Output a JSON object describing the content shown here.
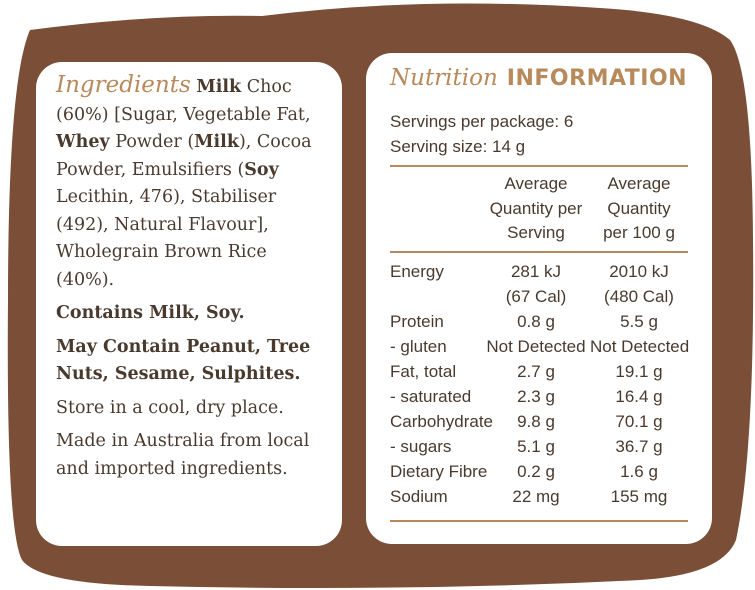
{
  "colors": {
    "brown": "#7a4e37",
    "gold": "#b8895a",
    "text": "#4a3a2e",
    "panel": "#ffffff"
  },
  "ingredients": {
    "title": "Ingredients",
    "lead_bold": "Milk",
    "lead_text": " Choc (60%) [Sugar, Vegetable Fat, ",
    "whey_bold": "Whey",
    "whey_text": " Powder (",
    "milk_bold": "Milk",
    "after_milk": "), Cocoa Powder, Emulsifiers (",
    "soy_bold": "Soy",
    "soy_text": " Lecithin, 476), Stabiliser (492), Natural Flavour], Wholegrain Brown Rice (40%).",
    "contains": "Contains Milk, Soy.",
    "may_contain": "May Contain Peanut, Tree Nuts, Sesame, Sulphites.",
    "storage": "Store in a cool, dry place.",
    "origin": "Made in Australia from local and imported ingredients."
  },
  "nutrition": {
    "title_script": "Nutrition",
    "title_caps": "INFORMATION",
    "servings_per_package": "Servings per package: 6",
    "serving_size": "Serving size: 14 g",
    "col_serving_l1": "Average",
    "col_serving_l2": "Quantity per",
    "col_serving_l3": "Serving",
    "col_100g_l1": "Average",
    "col_100g_l2": "Quantity",
    "col_100g_l3": "per 100 g",
    "rows": [
      {
        "name": "Energy",
        "serving": "281 kJ",
        "per100": "2010 kJ"
      },
      {
        "name": "",
        "serving": "(67 Cal)",
        "per100": "(480 Cal)"
      },
      {
        "name": "Protein",
        "serving": "0.8 g",
        "per100": "5.5 g"
      },
      {
        "name": "- gluten",
        "serving": "Not Detected",
        "per100": "Not Detected"
      },
      {
        "name": "Fat, total",
        "serving": "2.7 g",
        "per100": "19.1 g"
      },
      {
        "name": "- saturated",
        "serving": "2.3 g",
        "per100": "16.4 g"
      },
      {
        "name": "Carbohydrate",
        "serving": "9.8 g",
        "per100": "70.1 g"
      },
      {
        "name": "- sugars",
        "serving": "5.1 g",
        "per100": "36.7 g"
      },
      {
        "name": "Dietary Fibre",
        "serving": "0.2 g",
        "per100": "1.6 g"
      },
      {
        "name": "Sodium",
        "serving": "22 mg",
        "per100": "155 mg"
      }
    ]
  }
}
